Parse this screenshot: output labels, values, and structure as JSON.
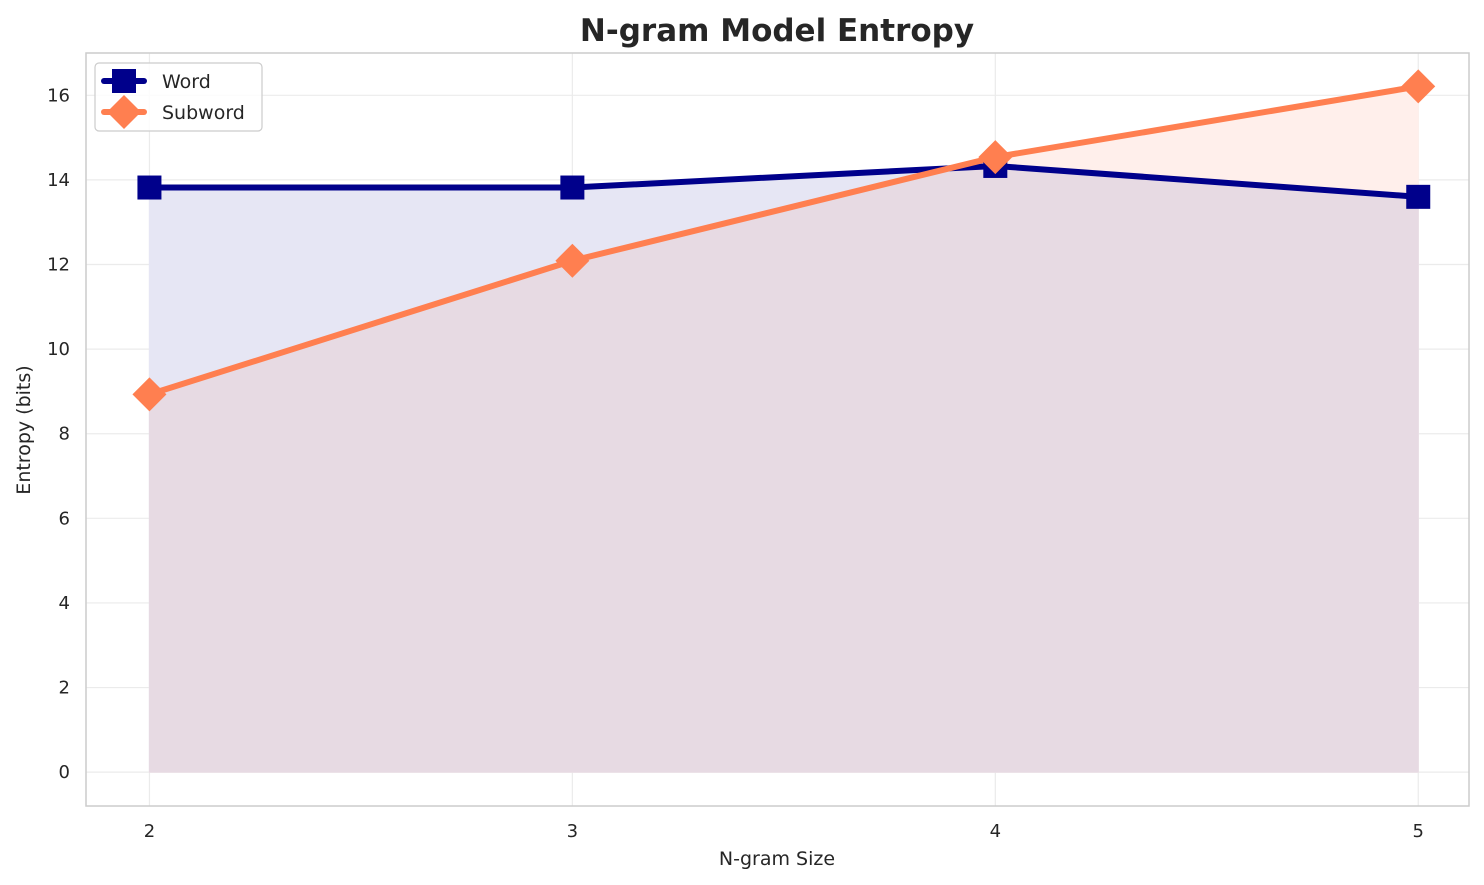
{
  "chart_data": {
    "type": "line",
    "title": "N-gram Model Entropy",
    "xlabel": "N-gram Size",
    "ylabel": "Entropy (bits)",
    "x": [
      2,
      3,
      4,
      5
    ],
    "xticks": [
      "2",
      "3",
      "4",
      "5"
    ],
    "yticks": [
      "0",
      "2",
      "4",
      "6",
      "8",
      "10",
      "12",
      "14",
      "16"
    ],
    "xlim": [
      1.85,
      5.12
    ],
    "ylim": [
      -0.8,
      17
    ],
    "grid": true,
    "legend": "top-left",
    "series": [
      {
        "name": "Word",
        "values": [
          13.82,
          13.82,
          14.33,
          13.6
        ],
        "color": "#00008b",
        "fill": "#e6e6f4",
        "marker": "square"
      },
      {
        "name": "Subword",
        "values": [
          8.93,
          12.09,
          14.54,
          16.21
        ],
        "color": "#ff7f50",
        "fill": "#ffefeb",
        "marker": "diamond"
      }
    ],
    "overlap_fill": "#e7dae3"
  }
}
